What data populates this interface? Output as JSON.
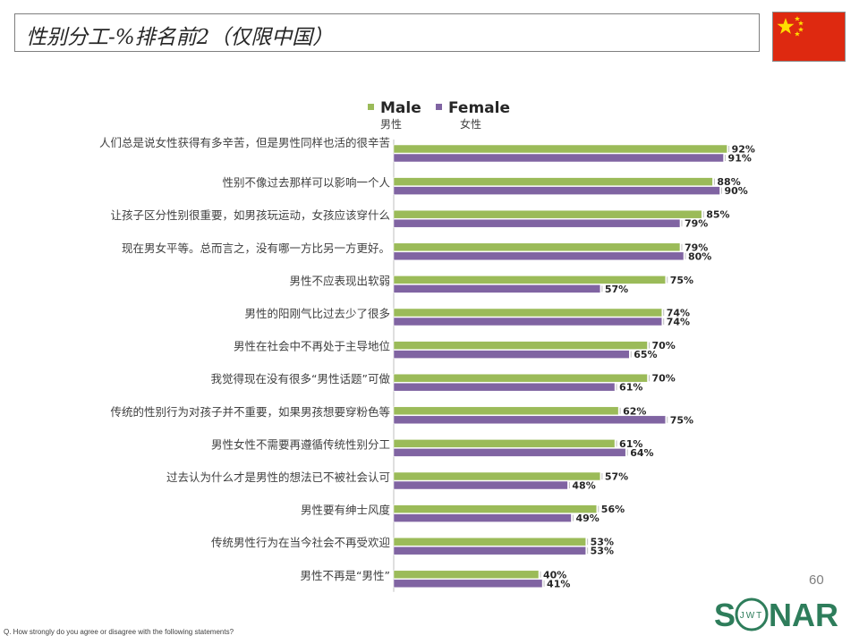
{
  "title": "性别分工-%排名前2（仅限中国）",
  "flag": {
    "name": "china-flag",
    "colors": {
      "red": "#DE2910",
      "yellow": "#FFDE00"
    }
  },
  "page_number": "60",
  "footnote": "Q. How strongly do you agree or disagree with the following statements?",
  "logo": {
    "left": "S",
    "inner": "JWT",
    "right": "NAR"
  },
  "colors": {
    "male": "#9BBB59",
    "female": "#8064A2",
    "logo_green": "#2E7D5B"
  },
  "chart_data": {
    "type": "bar",
    "orientation": "horizontal",
    "categories": [
      "人们总是说女性获得有多辛苦，但是男性同样也活的很辛苦",
      "性别不像过去那样可以影响一个人",
      "让孩子区分性别很重要，如男孩玩运动，女孩应该穿什么",
      "现在男女平等。总而言之，没有哪一方比另一方更好。",
      "男性不应表现出软弱",
      "男性的阳刚气比过去少了很多",
      "男性在社会中不再处于主导地位",
      "我觉得现在没有很多“男性话题”可做",
      "传统的性别行为对孩子并不重要，如果男孩想要穿粉色等",
      "男性女性不需要再遵循传统性别分工",
      "过去认为什么才是男性的想法已不被社会认可",
      "男性要有绅士风度",
      "传统男性行为在当今社会不再受欢迎",
      "男性不再是“男性”"
    ],
    "series": [
      {
        "name": "Male",
        "name_cn": "男性",
        "color": "#9BBB59",
        "values": [
          92,
          88,
          85,
          79,
          75,
          74,
          70,
          70,
          62,
          61,
          57,
          56,
          53,
          40
        ]
      },
      {
        "name": "Female",
        "name_cn": "女性",
        "color": "#8064A2",
        "values": [
          91,
          90,
          79,
          80,
          57,
          74,
          65,
          61,
          75,
          64,
          48,
          49,
          53,
          41
        ]
      }
    ],
    "value_suffix": "%",
    "xlim": [
      0,
      100
    ],
    "legend_position": "top",
    "grid": false
  }
}
